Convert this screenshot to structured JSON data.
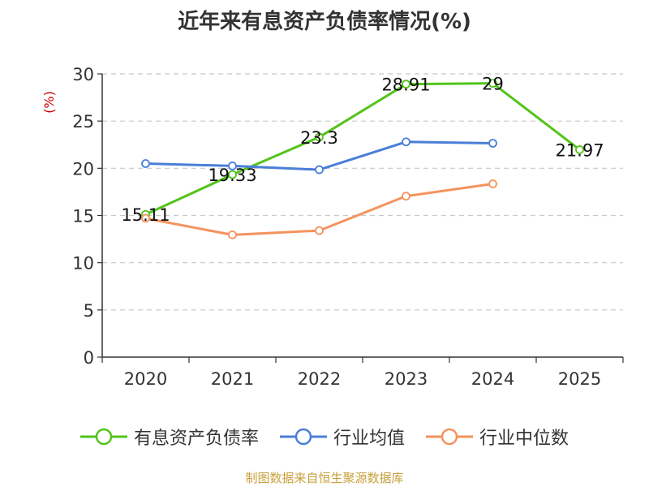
{
  "chart_data": {
    "type": "line",
    "title": "近年来有息资产负债率情况(%)",
    "ylabel": "(%)",
    "xlabel": "",
    "categories": [
      "2020",
      "2021",
      "2022",
      "2023",
      "2024",
      "2025"
    ],
    "ylim": [
      0,
      30
    ],
    "yticks": [
      0,
      5,
      10,
      15,
      20,
      25,
      30
    ],
    "grid": true,
    "legend_position": "bottom",
    "series": [
      {
        "name": "有息资产负债率",
        "color": "#52c41a",
        "values": [
          15.11,
          19.33,
          23.3,
          28.91,
          29,
          21.97
        ],
        "labels": [
          "15.11",
          "19.33",
          "23.3",
          "28.91",
          "29",
          "21.97"
        ]
      },
      {
        "name": "行业均值",
        "color": "#4a7fd8",
        "values": [
          20.5,
          20.25,
          19.85,
          22.8,
          22.65,
          null
        ]
      },
      {
        "name": "行业中位数",
        "color": "#f4935d",
        "values": [
          14.7,
          12.95,
          13.4,
          17.05,
          18.35,
          null
        ]
      }
    ]
  },
  "source": {
    "text": "制图数据来自恒生聚源数据库",
    "color": "#c8a03c"
  },
  "colors": {
    "axis": "#333333",
    "grid": "#c8c8c8",
    "ylabel": "#cc0000"
  }
}
